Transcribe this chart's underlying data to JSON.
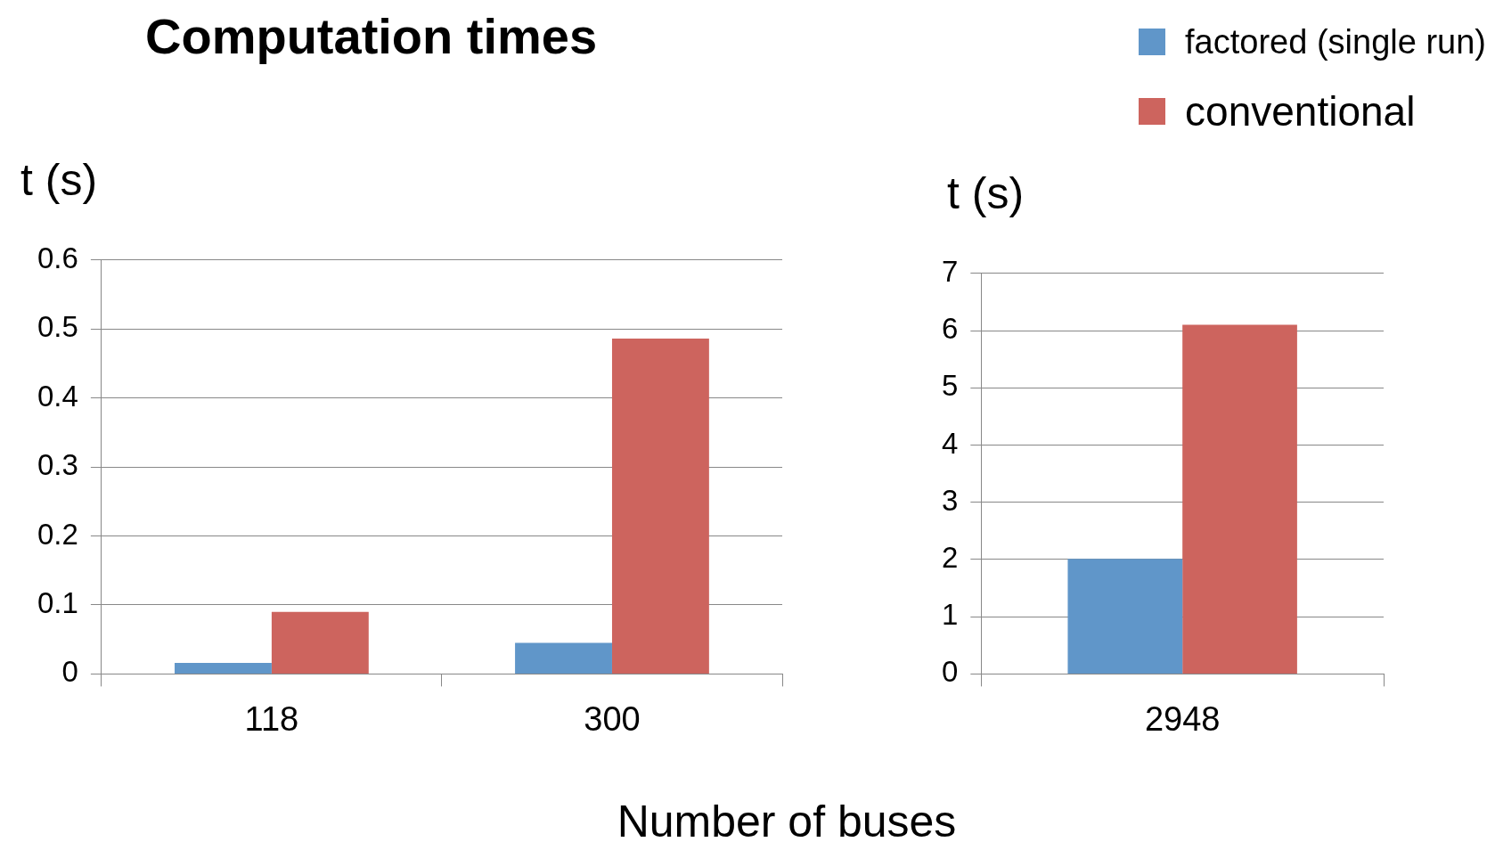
{
  "chart_data": [
    {
      "type": "bar",
      "title": "Computation times",
      "ylabel": "t (s)",
      "xlabel": "Number of buses",
      "categories": [
        "118",
        "300"
      ],
      "series": [
        {
          "color": "#6096c9",
          "values": [
            0.016,
            0.045
          ]
        },
        {
          "color": "#cd645e",
          "values": [
            0.09,
            0.486
          ]
        }
      ],
      "ylim": [
        0,
        0.6
      ],
      "yticks": [
        0,
        0.1,
        0.2,
        0.3,
        0.4,
        0.5,
        0.6
      ],
      "grid": "y",
      "legend": false
    },
    {
      "type": "bar",
      "ylabel": "t (s)",
      "categories": [
        "2948"
      ],
      "series": [
        {
          "name": "factored (single run)",
          "color": "#6096c9",
          "values": [
            2.01
          ]
        },
        {
          "name": "conventional",
          "color": "#cd645e",
          "values": [
            6.1
          ]
        }
      ],
      "ylim": [
        0,
        7
      ],
      "yticks": [
        0,
        1,
        2,
        3,
        4,
        5,
        6,
        7
      ],
      "grid": "y",
      "legend": "top right"
    }
  ]
}
